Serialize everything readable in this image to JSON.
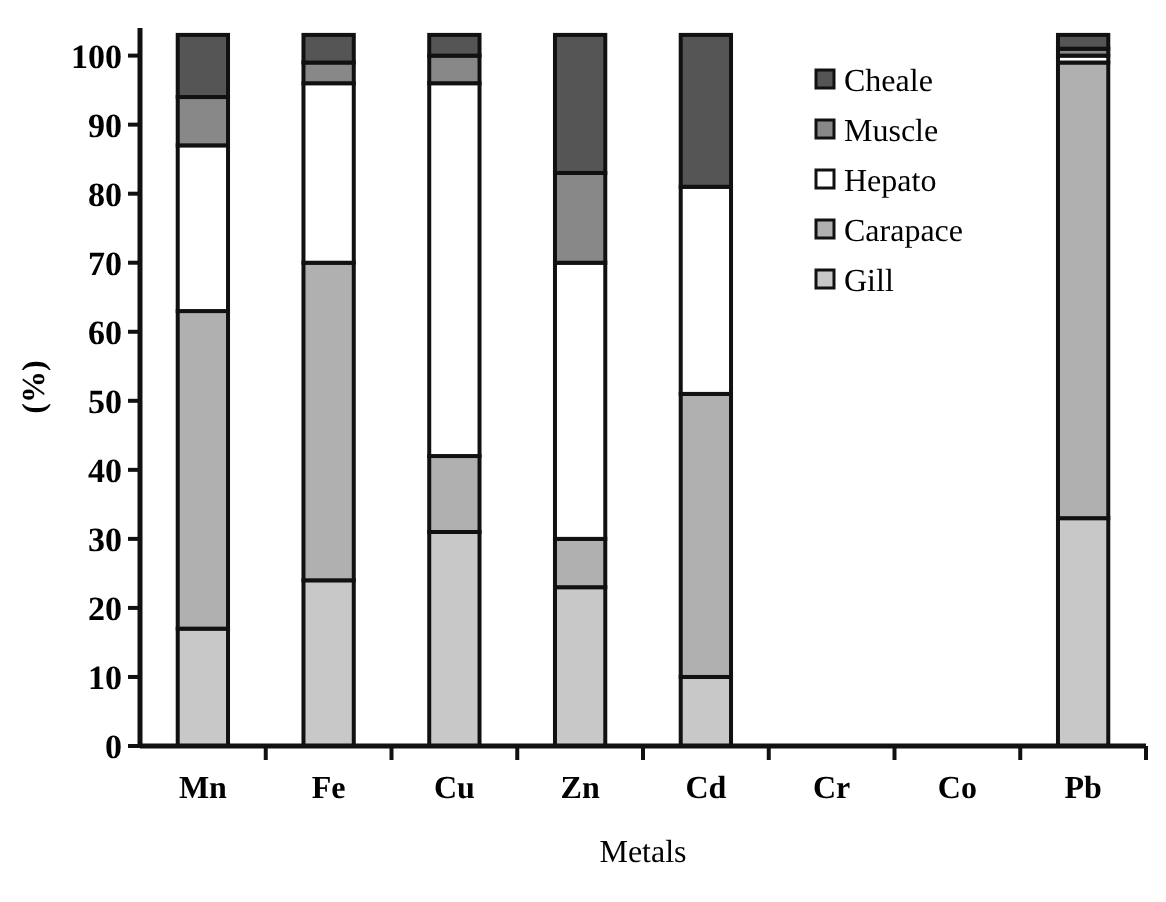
{
  "chart_data": {
    "type": "bar",
    "stacked": true,
    "xlabel": "Metals",
    "ylabel": "(%)",
    "categories": [
      "Mn",
      "Fe",
      "Cu",
      "Zn",
      "Cd",
      "Cr",
      "Co",
      "Pb"
    ],
    "series": [
      {
        "name": "Gill",
        "color": "#c8c8c8",
        "values": [
          17,
          24,
          31,
          23,
          10,
          0,
          0,
          33
        ]
      },
      {
        "name": "Carapace",
        "color": "#b0b0b0",
        "values": [
          46,
          46,
          11,
          7,
          41,
          0,
          0,
          66
        ]
      },
      {
        "name": "Hepato",
        "color": "#ffffff",
        "values": [
          24,
          26,
          54,
          40,
          30,
          0,
          0,
          1
        ]
      },
      {
        "name": "Muscle",
        "color": "#888888",
        "values": [
          7,
          3,
          4,
          13,
          0,
          0,
          0,
          1
        ]
      },
      {
        "name": "Cheale",
        "color": "#555555",
        "values": [
          9,
          4,
          3,
          20,
          22,
          0,
          0,
          2
        ]
      }
    ],
    "ylim": [
      0,
      104
    ],
    "yticks": [
      0,
      10,
      20,
      30,
      40,
      50,
      60,
      70,
      80,
      90,
      100
    ],
    "legend": "top right"
  }
}
